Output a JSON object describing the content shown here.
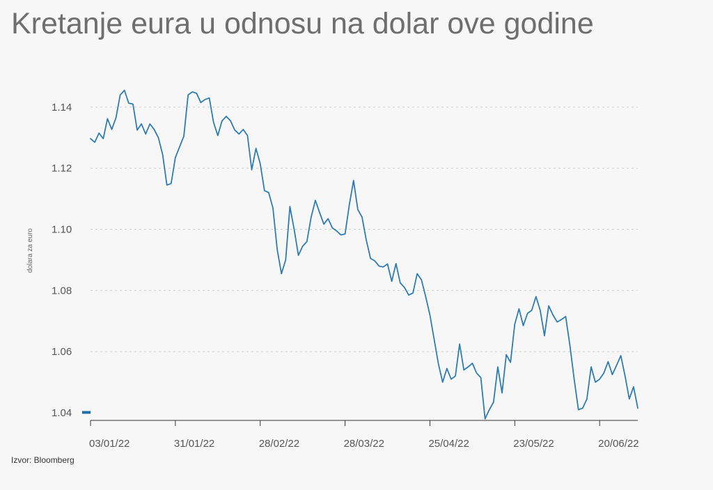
{
  "header": {
    "title": "Kretanje eura u odnosu na dolar ove godine"
  },
  "footer": {
    "source": "Izvor: Bloomberg"
  },
  "colors": {
    "line": "#2e7cb0",
    "grid": "#cfcfcf",
    "axis": "#333333",
    "marker": "#1a6fa8"
  },
  "chart_data": {
    "type": "line",
    "title": "Kretanje eura u odnosu na dolar ove godine",
    "xlabel": "",
    "ylabel": "dolara za euro",
    "ylim": [
      1.0375,
      1.15
    ],
    "yticks": [
      1.04,
      1.06,
      1.08,
      1.1,
      1.12,
      1.14
    ],
    "ytick_labels": [
      "1.04",
      "1.06",
      "1.08",
      "1.10",
      "1.12",
      "1.14"
    ],
    "grid": true,
    "xtick_labels": [
      "03/01/22",
      "31/01/22",
      "28/02/22",
      "28/03/22",
      "25/04/22",
      "23/05/22",
      "20/06/22"
    ],
    "xtick_index": [
      0,
      20,
      40,
      60,
      80,
      100,
      120
    ],
    "series": [
      {
        "values": [
          1.1297,
          1.1285,
          1.1315,
          1.1297,
          1.1362,
          1.1327,
          1.1365,
          1.144,
          1.1455,
          1.1413,
          1.141,
          1.1325,
          1.1345,
          1.1312,
          1.1345,
          1.1327,
          1.13,
          1.1245,
          1.1145,
          1.115,
          1.1235,
          1.127,
          1.1305,
          1.144,
          1.145,
          1.1445,
          1.1415,
          1.1425,
          1.143,
          1.135,
          1.1307,
          1.1355,
          1.137,
          1.1355,
          1.1325,
          1.1312,
          1.1327,
          1.1307,
          1.1195,
          1.1265,
          1.1215,
          1.1127,
          1.112,
          1.107,
          1.0935,
          1.0855,
          1.09,
          1.1075,
          1.1,
          1.0915,
          1.0945,
          1.096,
          1.104,
          1.1095,
          1.1055,
          1.1017,
          1.1035,
          1.1005,
          1.0995,
          1.0982,
          1.0985,
          1.108,
          1.116,
          1.1065,
          1.104,
          1.0965,
          1.0905,
          1.0897,
          1.088,
          1.0877,
          1.0887,
          1.083,
          1.0888,
          1.0825,
          1.081,
          1.0785,
          1.0792,
          1.0855,
          1.0835,
          1.078,
          1.072,
          1.064,
          1.056,
          1.05,
          1.0545,
          1.051,
          1.052,
          1.0625,
          1.054,
          1.055,
          1.0562,
          1.053,
          1.0515,
          1.038,
          1.041,
          1.0435,
          1.055,
          1.0465,
          1.059,
          1.0565,
          1.069,
          1.074,
          1.0685,
          1.0725,
          1.0735,
          1.078,
          1.0735,
          1.0652,
          1.075,
          1.072,
          1.0697,
          1.0705,
          1.0715,
          1.062,
          1.051,
          1.041,
          1.0415,
          1.0445,
          1.055,
          1.05,
          1.051,
          1.053,
          1.0567,
          1.0525,
          1.0555,
          1.0587,
          1.052,
          1.0445,
          1.0485,
          1.0415
        ]
      }
    ]
  }
}
